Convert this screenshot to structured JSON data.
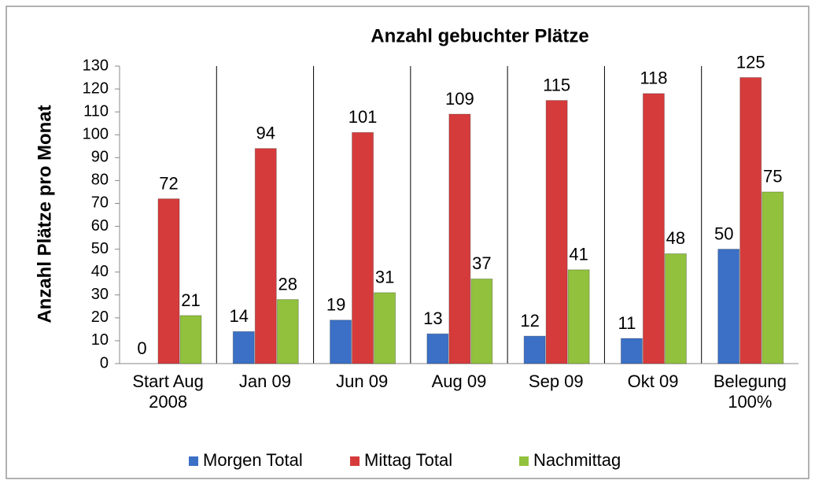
{
  "chart_data": {
    "type": "bar",
    "title": "Anzahl gebuchter Plätze",
    "ylabel": "Anzahl Plätze pro Monat",
    "categories": [
      "Start Aug 2008",
      "Jan 09",
      "Jun 09",
      "Aug 09",
      "Sep 09",
      "Okt 09",
      "Belegung 100%"
    ],
    "series": [
      {
        "name": "Morgen Total",
        "color": "#3b70c6",
        "values": [
          0,
          14,
          19,
          13,
          12,
          11,
          50
        ]
      },
      {
        "name": "Mittag Total",
        "color": "#d63b3b",
        "values": [
          72,
          94,
          101,
          109,
          115,
          118,
          125
        ]
      },
      {
        "name": "Nachmittag",
        "color": "#92c13d",
        "values": [
          21,
          28,
          31,
          37,
          41,
          48,
          75
        ]
      }
    ],
    "ylim": [
      0,
      130
    ],
    "yticks": [
      0,
      10,
      20,
      30,
      40,
      50,
      60,
      70,
      80,
      90,
      100,
      110,
      120,
      130
    ],
    "legend": "bottom"
  }
}
